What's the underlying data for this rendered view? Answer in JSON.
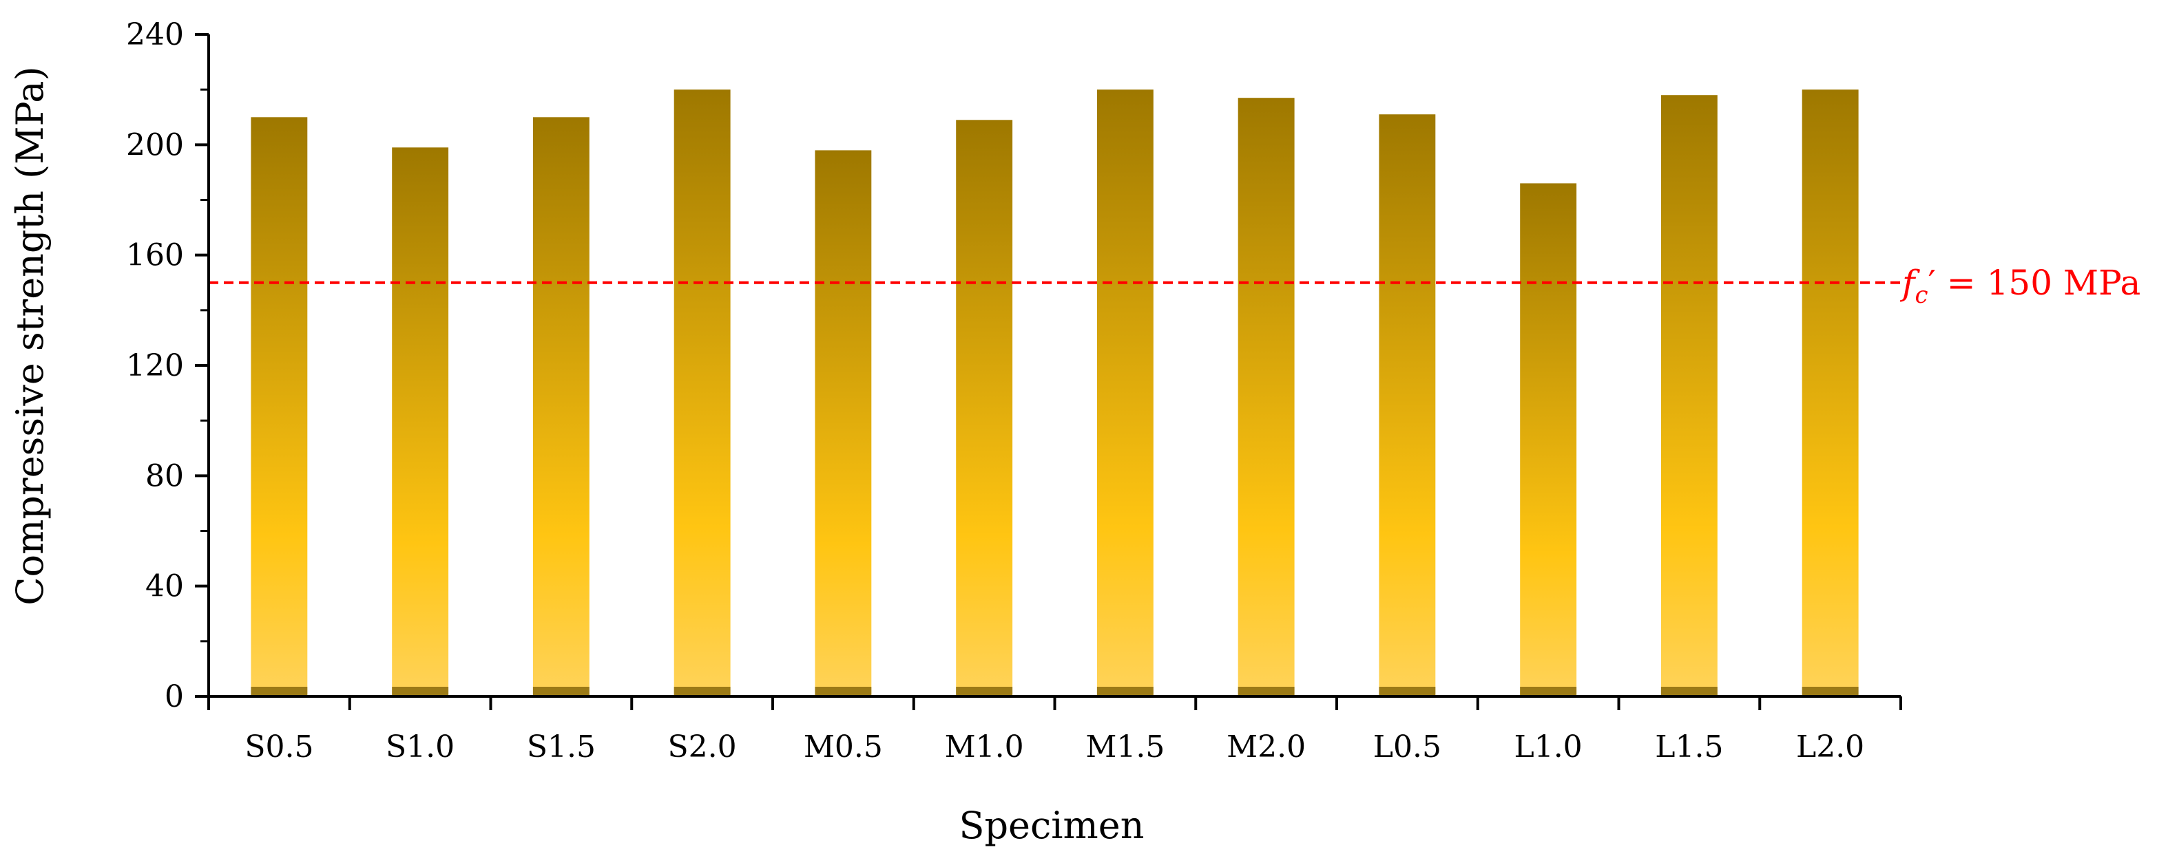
{
  "chart_data": {
    "type": "bar",
    "title": "",
    "xlabel": "Specimen",
    "ylabel": "Compressive strength (MPa)",
    "ylim": [
      0,
      240
    ],
    "yticks": [
      "0",
      "40",
      "80",
      "120",
      "160",
      "200",
      "240"
    ],
    "categories": [
      "S0.5",
      "S1.0",
      "S1.5",
      "S2.0",
      "M0.5",
      "M1.0",
      "M1.5",
      "M2.0",
      "L0.5",
      "L1.0",
      "L1.5",
      "L2.0"
    ],
    "values": [
      210,
      199,
      210,
      220,
      198,
      209,
      220,
      217,
      211,
      186,
      218,
      220
    ],
    "reference_line": {
      "value": 150,
      "label_f": "f",
      "label_sub": "c",
      "label_rest": "′ = 150 MPa",
      "color": "#ff0000"
    },
    "colors": {
      "bar_top": "#9e7800",
      "bar_mid": "#ffc512",
      "bar_bottom": "#ffd35a",
      "bar_base": "#8a6a0a"
    },
    "grid": false,
    "legend": "none"
  }
}
